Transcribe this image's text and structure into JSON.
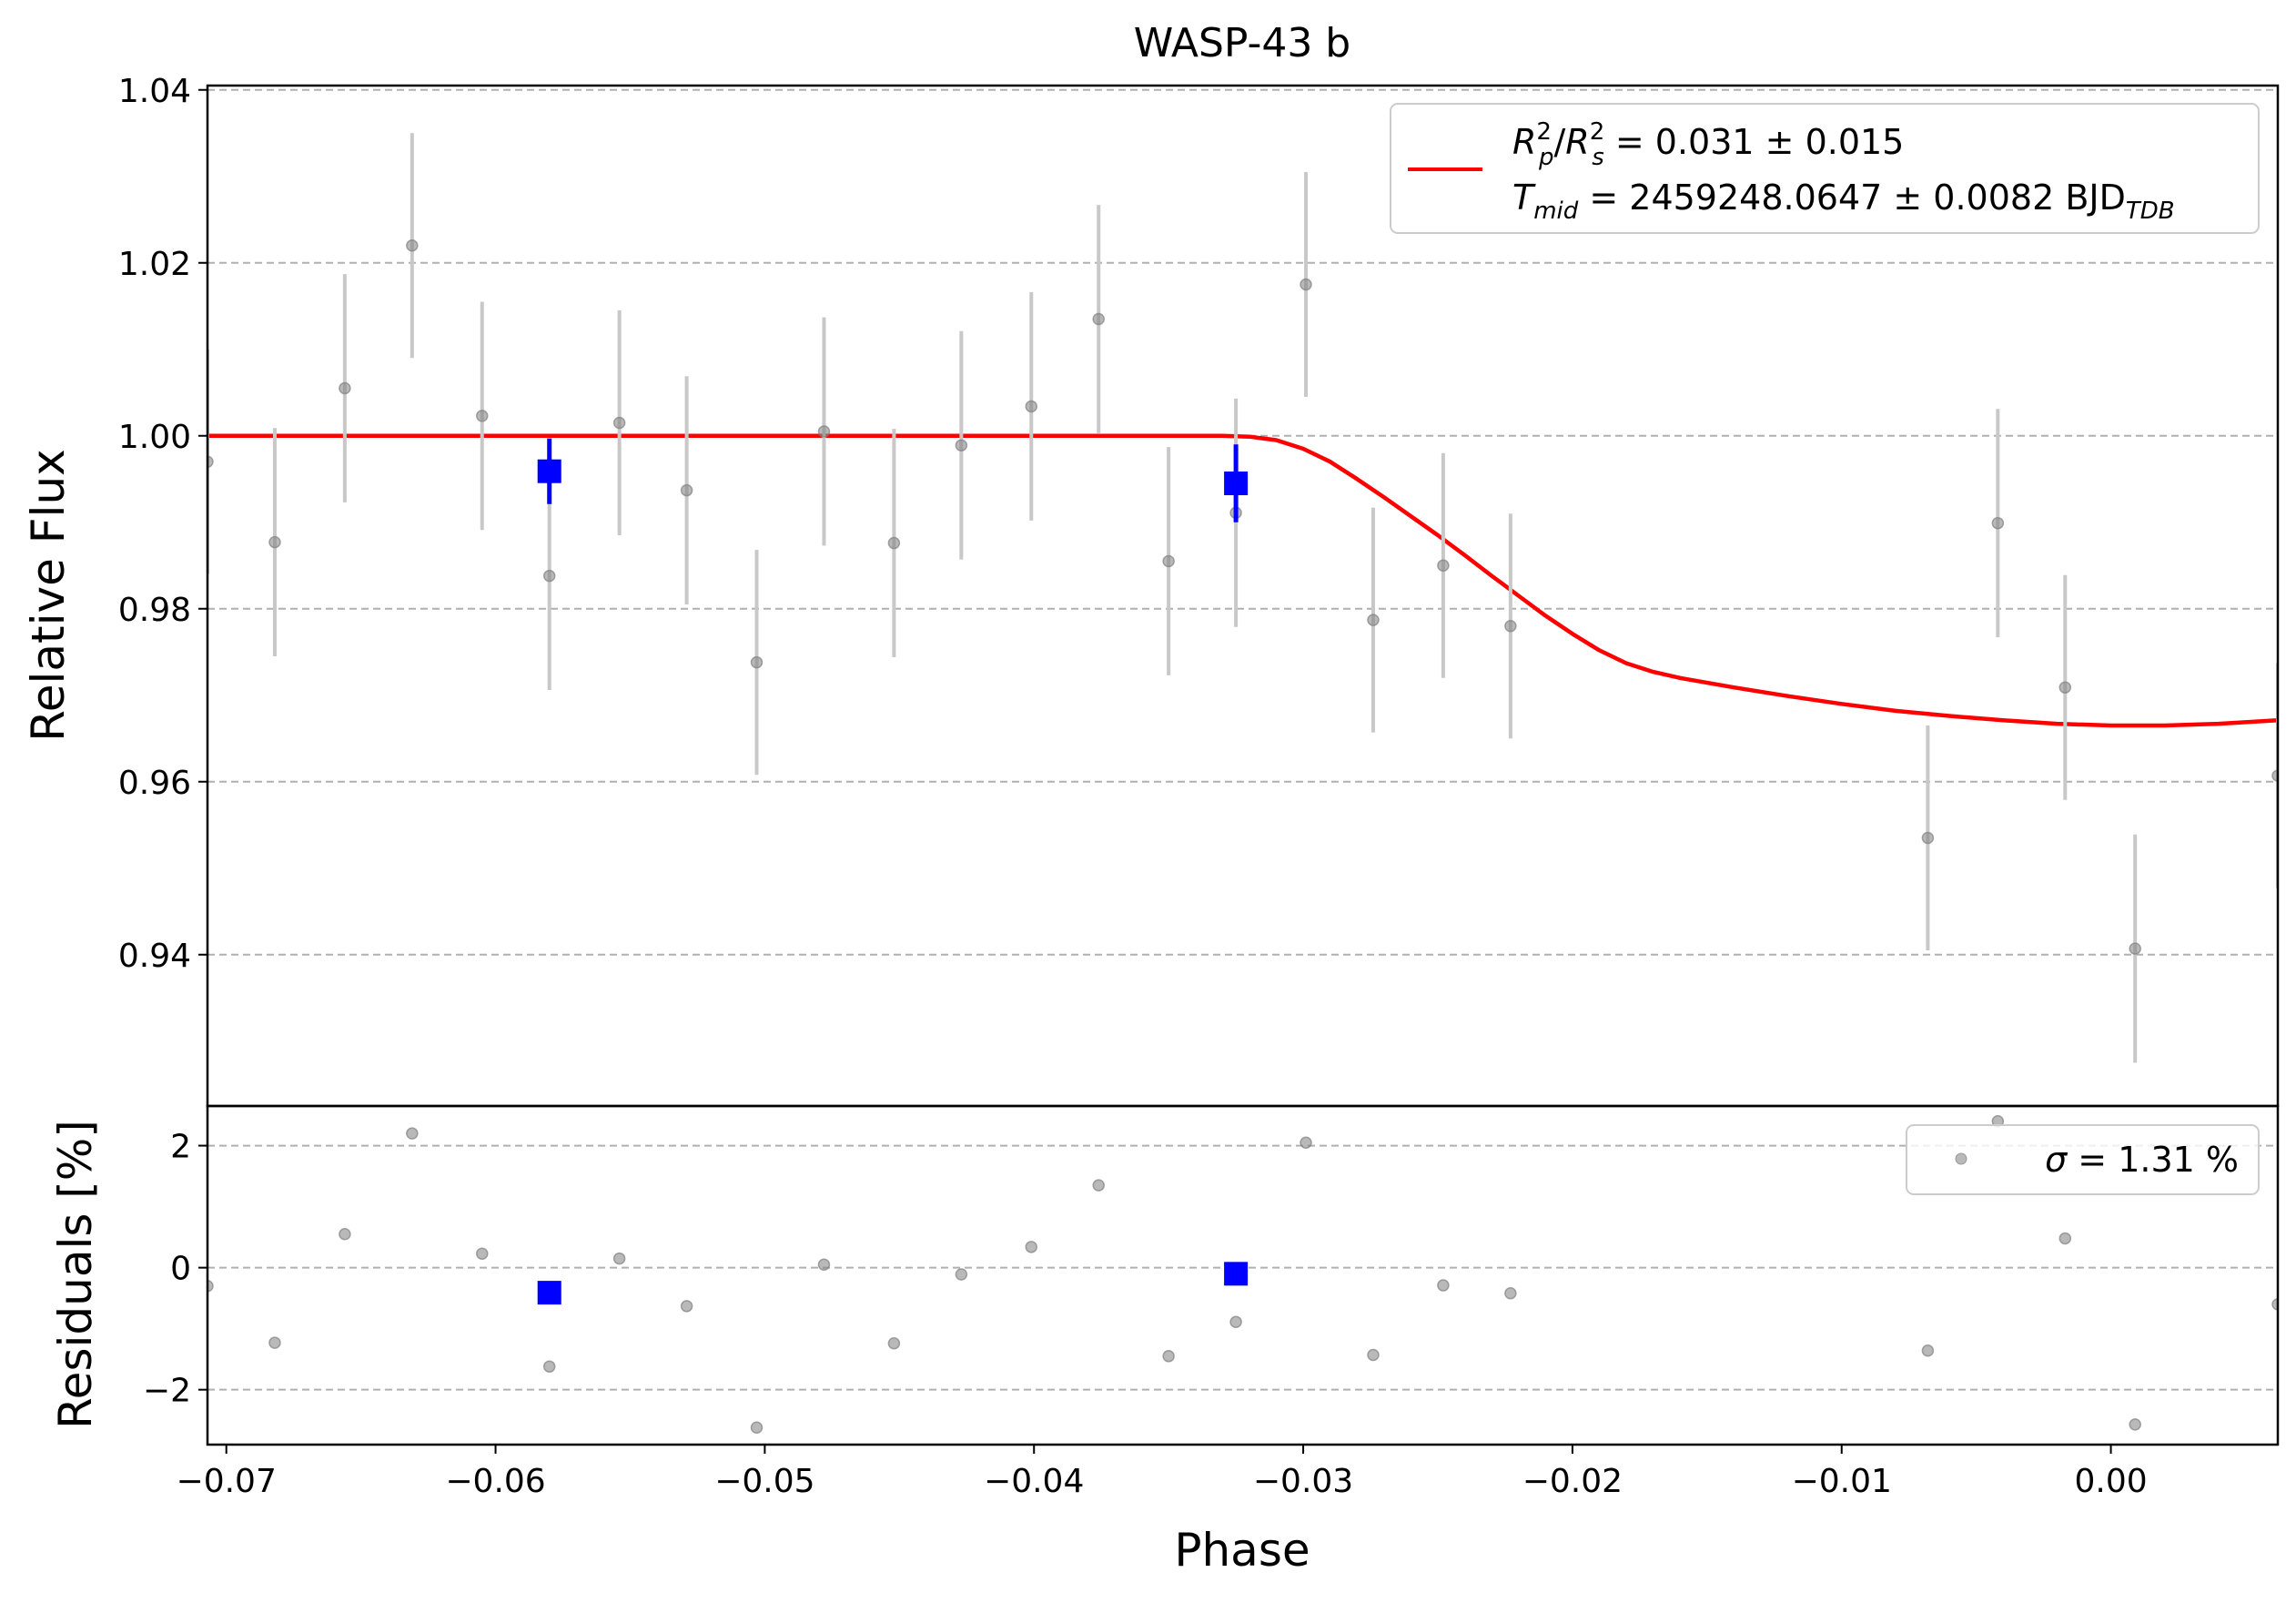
{
  "chart_data": [
    {
      "type": "scatter",
      "title": "WASP-43 b",
      "xlabel": "",
      "ylabel": "Relative Flux",
      "xlim": [
        -0.0707,
        0.0062
      ],
      "ylim": [
        0.9225,
        1.0405
      ],
      "yticks": [
        0.94,
        0.96,
        0.98,
        1.0,
        1.02,
        1.04
      ],
      "ytick_labels": [
        "0.94",
        "0.96",
        "0.98",
        "1.00",
        "1.02",
        "1.04"
      ],
      "grid": "y dashed",
      "legend_position": "top-right",
      "legend": {
        "entries": [
          {
            "series": "model",
            "line1": {
              "R": "R",
              "p": "p",
              "s": "s",
              "sup": "2",
              "val": " = 0.031 ± 0.015"
            },
            "line2": {
              "T": "T",
              "mid": "mid",
              "val": " = 2459248.0647 ± 0.0082 BJD",
              "tdb": "TDB"
            }
          }
        ]
      },
      "series": [
        {
          "kind": "points",
          "color": "#808080",
          "ecolor": "#c8c8c8",
          "x": [
            -0.0707,
            -0.0682,
            -0.0656,
            -0.0631,
            -0.0605,
            -0.058,
            -0.0554,
            -0.0529,
            -0.0503,
            -0.0478,
            -0.0452,
            -0.0427,
            -0.0401,
            -0.0376,
            -0.035,
            -0.0325,
            -0.0299,
            -0.0274,
            -0.0248,
            -0.0223,
            -0.0068,
            -0.0042,
            -0.0017,
            0.0009,
            0.0062
          ],
          "y": [
            0.997,
            0.9877,
            1.0055,
            1.022,
            1.0023,
            0.9838,
            1.0015,
            0.9937,
            0.9738,
            1.0005,
            0.9876,
            0.9989,
            1.0034,
            1.0135,
            0.9855,
            0.9911,
            1.0175,
            0.9787,
            0.985,
            0.978,
            0.9535,
            0.9899,
            0.9709,
            0.9407,
            0.9607
          ],
          "yerr": [
            0.013,
            0.0132,
            0.0132,
            0.013,
            0.0132,
            0.0132,
            0.013,
            0.0132,
            0.013,
            0.0132,
            0.0132,
            0.0132,
            0.0132,
            0.0132,
            0.0132,
            0.0132,
            0.013,
            0.013,
            0.013,
            0.013,
            0.013,
            0.0132,
            0.013,
            0.0132,
            0.013
          ]
        },
        {
          "kind": "binned",
          "color": "#0000ff",
          "x": [
            -0.058,
            -0.0325
          ],
          "y": [
            0.9959,
            0.9945
          ],
          "yerr": [
            0.0038,
            0.0045
          ]
        },
        {
          "kind": "model",
          "color": "#ff0000",
          "x": [
            -0.0707,
            -0.033,
            -0.032,
            -0.031,
            -0.03,
            -0.029,
            -0.028,
            -0.027,
            -0.026,
            -0.025,
            -0.024,
            -0.023,
            -0.022,
            -0.021,
            -0.02,
            -0.019,
            -0.018,
            -0.017,
            -0.016,
            -0.014,
            -0.012,
            -0.01,
            -0.008,
            -0.006,
            -0.004,
            -0.002,
            0.0,
            0.002,
            0.004,
            0.0062
          ],
          "y": [
            1.0,
            1.0,
            0.9999,
            0.9995,
            0.9985,
            0.997,
            0.995,
            0.9929,
            0.9907,
            0.9885,
            0.9862,
            0.9838,
            0.9815,
            0.9792,
            0.9771,
            0.9752,
            0.9737,
            0.9727,
            0.972,
            0.9709,
            0.9699,
            0.969,
            0.9682,
            0.9676,
            0.9671,
            0.9667,
            0.9665,
            0.9665,
            0.9667,
            0.9671
          ]
        }
      ]
    },
    {
      "type": "scatter",
      "title": "",
      "xlabel": "Phase",
      "ylabel": "Residuals [%]",
      "xlim": [
        -0.0707,
        0.0062
      ],
      "ylim": [
        -2.9,
        2.65
      ],
      "yticks": [
        -2,
        0,
        2
      ],
      "ytick_labels": [
        "−2",
        "0",
        "2"
      ],
      "xticks": [
        -0.07,
        -0.06,
        -0.05,
        -0.04,
        -0.03,
        -0.02,
        -0.01,
        0.0
      ],
      "xtick_labels": [
        "−0.07",
        "−0.06",
        "−0.05",
        "−0.04",
        "−0.03",
        "−0.02",
        "−0.01",
        "0.00"
      ],
      "grid": "y dashed",
      "legend_position": "top-right",
      "legend": {
        "entries": [
          {
            "series": "residuals",
            "sigma": "σ",
            "val": " = 1.31 %"
          }
        ]
      },
      "series": [
        {
          "kind": "points",
          "color": "#808080",
          "x": [
            -0.0707,
            -0.0682,
            -0.0656,
            -0.0631,
            -0.0605,
            -0.058,
            -0.0554,
            -0.0529,
            -0.0503,
            -0.0478,
            -0.0452,
            -0.0427,
            -0.0401,
            -0.0376,
            -0.035,
            -0.0325,
            -0.0299,
            -0.0274,
            -0.0248,
            -0.0223,
            -0.0068,
            -0.0042,
            -0.0017,
            0.0009,
            0.0062
          ],
          "y": [
            -0.3,
            -1.23,
            0.55,
            2.2,
            0.23,
            -1.62,
            0.15,
            -0.63,
            -2.62,
            0.05,
            -1.24,
            -0.11,
            0.34,
            1.35,
            -1.45,
            -0.89,
            2.05,
            -1.43,
            -0.29,
            -0.42,
            -1.36,
            2.4,
            0.48,
            -2.57,
            -0.6
          ]
        },
        {
          "kind": "binned",
          "color": "#0000ff",
          "x": [
            -0.058,
            -0.0325
          ],
          "y": [
            -0.41,
            -0.1
          ]
        }
      ]
    }
  ]
}
